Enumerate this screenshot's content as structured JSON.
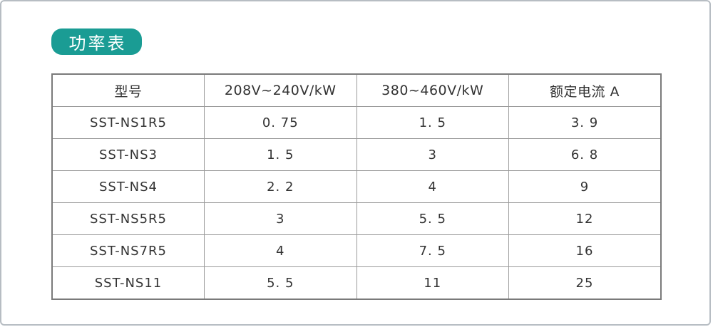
{
  "page": {
    "background_color": "#ffffff",
    "frame_border_color": "#b7bdc3"
  },
  "title_badge": {
    "label": "功率表",
    "background_color": "#1a9c94",
    "text_color": "#ffffff"
  },
  "table": {
    "headers": [
      "型号",
      "208V~240V/kW",
      "380~460V/kW",
      "额定电流 A"
    ],
    "rows": [
      [
        "SST-NS1R5",
        "0. 75",
        "1. 5",
        "3. 9"
      ],
      [
        "SST-NS3",
        "1. 5",
        "3",
        "6. 8"
      ],
      [
        "SST-NS4",
        "2. 2",
        "4",
        "9"
      ],
      [
        "SST-NS5R5",
        "3",
        "5. 5",
        "12"
      ],
      [
        "SST-NS7R5",
        "4",
        "7. 5",
        "16"
      ],
      [
        "SST-NS11",
        "5. 5",
        "11",
        "25"
      ]
    ],
    "outer_border_color": "#7a7a7a",
    "grid_line_color": "#9b9b9b",
    "text_color": "#333333"
  }
}
